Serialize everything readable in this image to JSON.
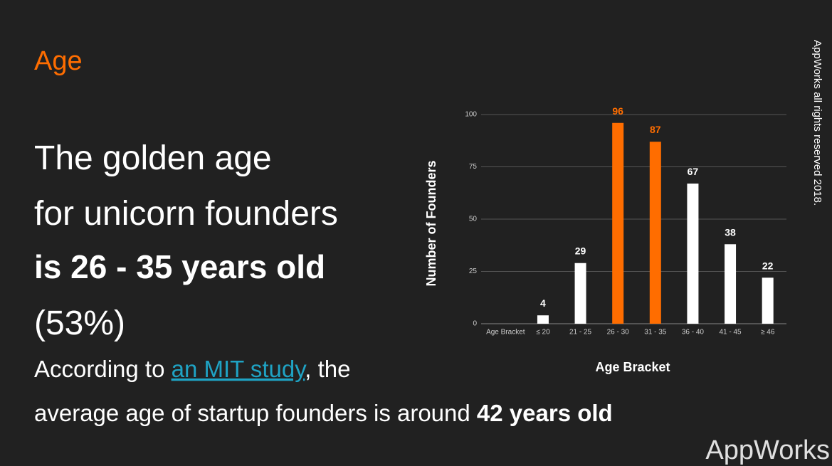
{
  "header": {
    "title": "Age"
  },
  "headline": {
    "line1": "The golden age",
    "line2": "for unicorn founders",
    "line3": "is 26 - 35 years old",
    "line4": "(53%)"
  },
  "body": {
    "text1": "According to ",
    "link": "an MIT study",
    "text2": ", the",
    "line2": "average age of startup founders is around ",
    "line2_bold": "42 years old"
  },
  "copyright": "AppWorks all rights reserved 2018.",
  "logo": "AppWorks",
  "chart_data": {
    "type": "bar",
    "x_label": "Age Bracket",
    "y_label": "Number of Founders",
    "categories": [
      "Age Bracket",
      "≤ 20",
      "21 - 25",
      "26 - 30",
      "31 - 35",
      "36 - 40",
      "41 - 45",
      "≥ 46"
    ],
    "values": [
      null,
      4,
      29,
      96,
      87,
      67,
      38,
      22
    ],
    "colors": [
      "#ffffff",
      "#ffffff",
      "#ffffff",
      "#ff6d00",
      "#ff6d00",
      "#ffffff",
      "#ffffff",
      "#ffffff"
    ],
    "ylim": [
      0,
      100
    ],
    "yticks": [
      0,
      25,
      50,
      75,
      100
    ],
    "grid": true
  }
}
